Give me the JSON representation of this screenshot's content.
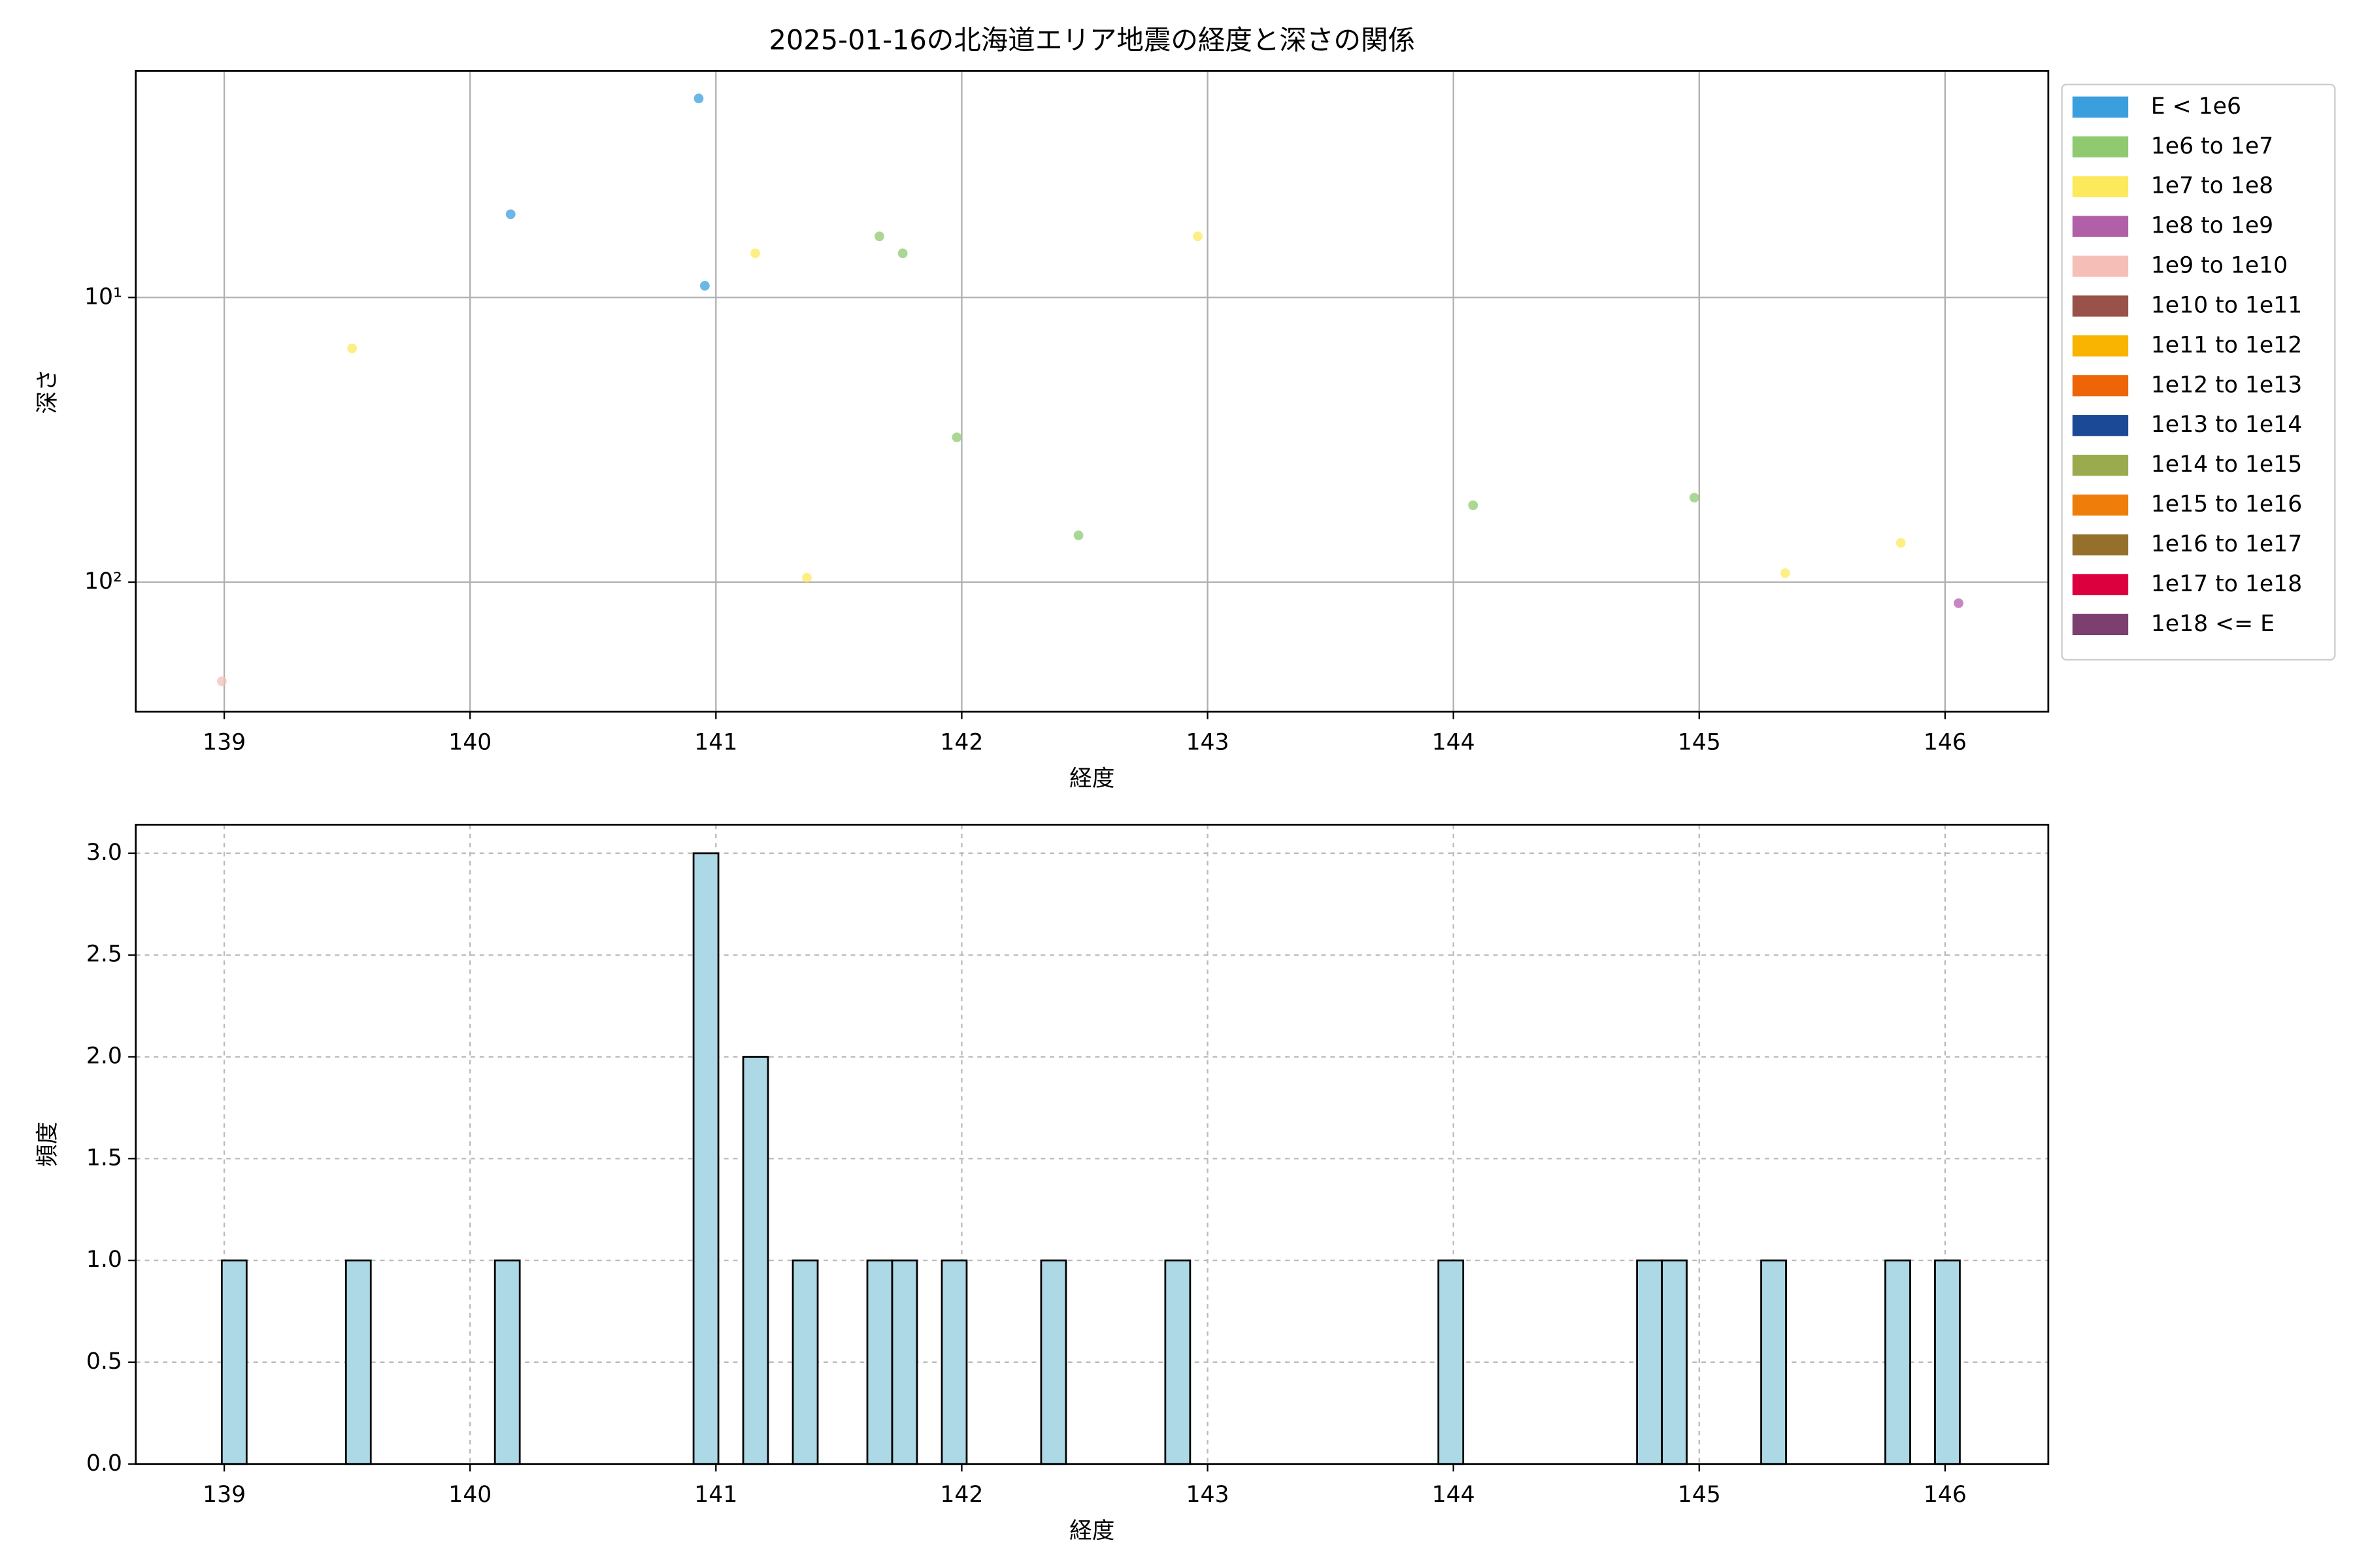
{
  "chart_data": [
    {
      "type": "scatter",
      "title": "2025-01-16の北海道エリア地震の経度と深さの関係",
      "xlabel": "経度",
      "ylabel": "深さ",
      "yscale": "log",
      "grid": true,
      "grid_linestyle": "solid",
      "legend": "outside-upper-right",
      "xlim": [
        138.64,
        146.42
      ],
      "xticks": [
        139,
        140,
        141,
        142,
        143,
        144,
        145,
        146
      ],
      "ylim": [
        285,
        1.6
      ],
      "yticks": [
        {
          "value": 10,
          "label": "10¹"
        },
        {
          "value": 100,
          "label": "10²"
        }
      ],
      "series": [
        {
          "name": "E < 1e6",
          "color": "#3a9fdc",
          "x": [
            140.93,
            140.165,
            140.955
          ],
          "values": [
            2.0,
            5.1,
            9.1
          ]
        },
        {
          "name": "1e6 to 1e7",
          "color": "#8fc970",
          "x": [
            141.665,
            141.76,
            141.98,
            142.475,
            144.08,
            144.98
          ],
          "values": [
            6.1,
            7.0,
            31.0,
            68.5,
            53.7,
            50.5
          ]
        },
        {
          "name": "1e7 to 1e8",
          "color": "#fce95c",
          "x": [
            139.52,
            141.16,
            142.96,
            141.37,
            145.35,
            145.82
          ],
          "values": [
            15.1,
            7.0,
            6.1,
            96.4,
            93,
            72.8
          ]
        },
        {
          "name": "1e8 to 1e9",
          "color": "#b15fa7",
          "x": [
            146.055
          ],
          "values": [
            118.6
          ]
        },
        {
          "name": "1e9 to 1e10",
          "color": "#f5bfb8",
          "x": [
            138.99
          ],
          "values": [
            223
          ]
        },
        {
          "name": "1e10 to 1e11",
          "color": "#985249",
          "x": [],
          "values": []
        },
        {
          "name": "1e11 to 1e12",
          "color": "#f8b400",
          "x": [],
          "values": []
        },
        {
          "name": "1e12 to 1e13",
          "color": "#ee6507",
          "x": [],
          "values": []
        },
        {
          "name": "1e13 to 1e14",
          "color": "#1c4996",
          "x": [],
          "values": []
        },
        {
          "name": "1e14 to 1e15",
          "color": "#9aab4d",
          "x": [],
          "values": []
        },
        {
          "name": "1e15 to 1e16",
          "color": "#ef7d0a",
          "x": [],
          "values": []
        },
        {
          "name": "1e16 to 1e17",
          "color": "#94702c",
          "x": [],
          "values": []
        },
        {
          "name": "1e17 to 1e18",
          "color": "#dd003e",
          "x": [],
          "values": []
        },
        {
          "name": "1e18 <= E",
          "color": "#7b4070",
          "x": [],
          "values": []
        }
      ]
    },
    {
      "type": "histogram",
      "xlabel": "経度",
      "ylabel": "頻度",
      "grid": true,
      "grid_linestyle": "dashed",
      "color": "#add8e6",
      "edgecolor": "#000000",
      "xlim": [
        138.64,
        146.42
      ],
      "xticks": [
        139,
        140,
        141,
        142,
        143,
        144,
        145,
        146
      ],
      "ylim": [
        0,
        3.14
      ],
      "yticks": [
        {
          "value": 0,
          "label": "0.0"
        },
        {
          "value": 0.5,
          "label": "0.5"
        },
        {
          "value": 1,
          "label": "1.0"
        },
        {
          "value": 1.5,
          "label": "1.5"
        },
        {
          "value": 2,
          "label": "2.0"
        },
        {
          "value": 2.5,
          "label": "2.5"
        },
        {
          "value": 3,
          "label": "3.0"
        }
      ],
      "bins": [
        138.99,
        139.091,
        139.192,
        139.293,
        139.394,
        139.495,
        139.596,
        139.697,
        139.798,
        139.899,
        140.0,
        140.101,
        140.202,
        140.303,
        140.404,
        140.505,
        140.606,
        140.707,
        140.808,
        140.909,
        141.01,
        141.111,
        141.212,
        141.313,
        141.414,
        141.515,
        141.616,
        141.717,
        141.818,
        141.919,
        142.02,
        142.121,
        142.222,
        142.323,
        142.424,
        142.525,
        142.626,
        142.727,
        142.828,
        142.929,
        143.03,
        143.131,
        143.232,
        143.333,
        143.434,
        143.535,
        143.636,
        143.737,
        143.838,
        143.939,
        144.04,
        144.141,
        144.242,
        144.343,
        144.444,
        144.545,
        144.646,
        144.747,
        144.848,
        144.949,
        145.05,
        145.151,
        145.252,
        145.353,
        145.454,
        145.555,
        145.656,
        145.757,
        145.858,
        145.959,
        146.06
      ],
      "values": [
        1,
        0,
        0,
        0,
        0,
        1,
        0,
        0,
        0,
        0,
        0,
        1,
        0,
        0,
        0,
        0,
        0,
        0,
        0,
        3,
        0,
        2,
        0,
        1,
        0,
        0,
        1,
        1,
        0,
        1,
        0,
        0,
        0,
        1,
        0,
        0,
        0,
        0,
        1,
        0,
        0,
        0,
        0,
        0,
        0,
        0,
        0,
        0,
        0,
        1,
        0,
        0,
        0,
        0,
        0,
        0,
        0,
        1,
        1,
        0,
        0,
        0,
        1,
        0,
        0,
        0,
        0,
        1,
        0,
        1
      ]
    }
  ]
}
